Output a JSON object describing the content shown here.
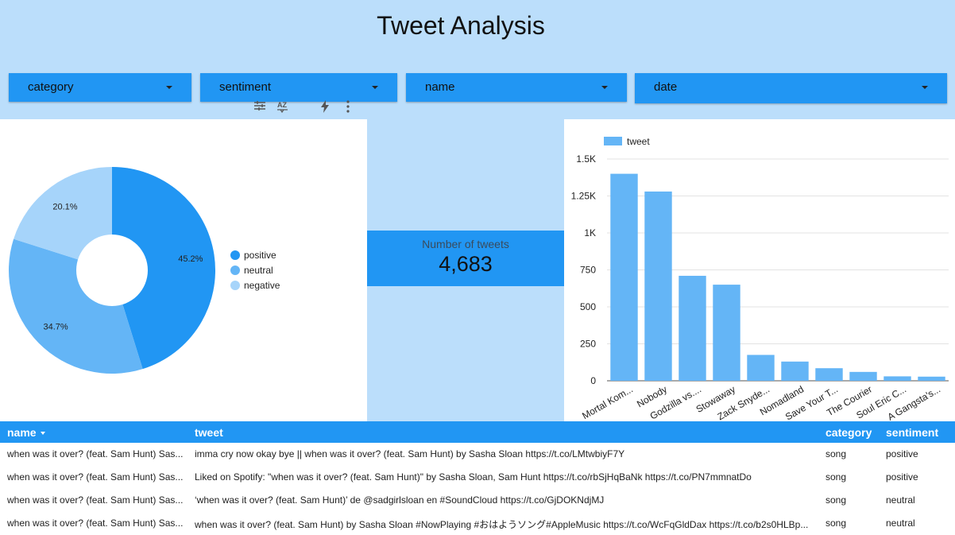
{
  "header": {
    "title": "Tweet Analysis"
  },
  "filters": [
    {
      "label": "category"
    },
    {
      "label": "sentiment"
    },
    {
      "label": "name"
    },
    {
      "label": "date"
    }
  ],
  "toolbar_icons": [
    "filter-sliders-icon",
    "sort-az-icon",
    "lightning-icon",
    "more-vert-icon"
  ],
  "scorecard": {
    "label": "Number of tweets",
    "value": "4,683"
  },
  "colors": {
    "background": "#bbdefb",
    "accent": "#2196f3",
    "positive": "#2196f3",
    "neutral": "#64b5f6",
    "negative": "#a6d4fa",
    "bar": "#64b5f6"
  },
  "chart_data": [
    {
      "type": "pie",
      "donut": true,
      "slices": [
        {
          "name": "positive",
          "value": 45.2,
          "label": "45.2%"
        },
        {
          "name": "neutral",
          "value": 34.7,
          "label": "34.7%"
        },
        {
          "name": "negative",
          "value": 20.1,
          "label": "20.1%"
        }
      ],
      "legend": [
        "positive",
        "neutral",
        "negative"
      ],
      "legend_position": "right"
    },
    {
      "type": "bar",
      "categories": [
        "Mortal Kom...",
        "Nobody",
        "Godzilla vs....",
        "Stowaway",
        "Zack Snyde...",
        "Nomadland",
        "Save Your T...",
        "The Courier",
        "Soul Eric C...",
        "A Gangsta's..."
      ],
      "series": [
        {
          "name": "tweet",
          "values": [
            1400,
            1280,
            710,
            650,
            175,
            130,
            85,
            60,
            30,
            28
          ]
        }
      ],
      "ylim": [
        0,
        1500
      ],
      "yticks": [
        0,
        250,
        500,
        750,
        1000,
        1250,
        1500
      ],
      "ytick_labels": [
        "0",
        "250",
        "500",
        "750",
        "1K",
        "1.25K",
        "1.5K"
      ],
      "legend_position": "top-left",
      "grid": true
    }
  ],
  "table": {
    "columns": [
      "name",
      "tweet",
      "category",
      "sentiment"
    ],
    "rows": [
      {
        "name": "when was it over? (feat. Sam Hunt) Sas...",
        "tweet": "imma cry now okay bye || when was it over? (feat. Sam Hunt) by Sasha Sloan https://t.co/LMtwbiyF7Y",
        "category": "song",
        "sentiment": "positive"
      },
      {
        "name": "when was it over? (feat. Sam Hunt) Sas...",
        "tweet": "Liked on Spotify: \"when was it over? (feat. Sam Hunt)\" by Sasha Sloan, Sam Hunt https://t.co/rbSjHqBaNk https://t.co/PN7mmnatDo",
        "category": "song",
        "sentiment": "positive"
      },
      {
        "name": "when was it over? (feat. Sam Hunt) Sas...",
        "tweet": "‘when was it over? (feat. Sam Hunt)’ de @sadgirlsloan en #SoundCloud https://t.co/GjDOKNdjMJ",
        "category": "song",
        "sentiment": "neutral"
      },
      {
        "name": "when was it over? (feat. Sam Hunt) Sas...",
        "tweet": "when was it over? (feat. Sam Hunt) by Sasha Sloan #NowPlaying #おはようソング#AppleMusic https://t.co/WcFqGldDax https://t.co/b2s0HLBp...",
        "category": "song",
        "sentiment": "neutral"
      }
    ]
  }
}
